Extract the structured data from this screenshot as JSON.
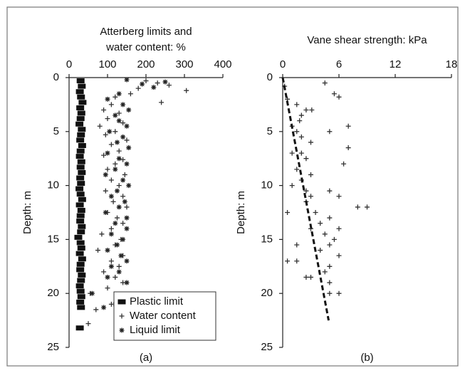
{
  "chart_data": [
    {
      "type": "scatter",
      "title_lines": [
        "Atterberg limits and",
        "water content: %"
      ],
      "y_label": "Depth: m",
      "caption": "(a)",
      "x_axis_position": "top",
      "y_inverted": true,
      "grid": false,
      "legend": "lower right",
      "xlim": [
        0,
        400
      ],
      "xticks": [
        0,
        100,
        200,
        300,
        400
      ],
      "ylim": [
        0,
        25
      ],
      "yticks": [
        0,
        5,
        10,
        15,
        20,
        25
      ],
      "series": [
        {
          "name": "Plastic limit",
          "marker": "square",
          "color": "#111",
          "x": [
            30,
            33,
            28,
            31,
            35,
            29,
            32,
            30,
            27,
            33,
            31,
            29,
            34,
            30,
            28,
            32,
            30,
            33,
            29,
            31,
            27,
            30,
            34,
            28,
            32,
            30,
            29,
            33,
            31,
            24,
            30,
            32,
            28,
            34,
            30,
            29,
            33,
            31,
            28,
            30,
            32,
            29,
            31,
            28
          ],
          "y": [
            0.3,
            0.8,
            1.3,
            1.8,
            2.3,
            2.8,
            3.3,
            3.8,
            4.3,
            4.8,
            5.3,
            5.8,
            6.3,
            6.8,
            7.3,
            7.8,
            8.3,
            8.8,
            9.3,
            9.8,
            10.3,
            10.8,
            11.3,
            11.8,
            12.3,
            12.8,
            13.3,
            13.8,
            14.3,
            14.8,
            15.3,
            15.8,
            16.3,
            16.8,
            17.3,
            17.8,
            18.3,
            18.8,
            19.3,
            19.8,
            20.3,
            20.8,
            21.3,
            23.2
          ]
        },
        {
          "name": "Water content",
          "marker": "plus",
          "color": "#333",
          "x": [
            200,
            230,
            260,
            180,
            305,
            160,
            120,
            240,
            110,
            90,
            130,
            100,
            140,
            80,
            120,
            95,
            150,
            110,
            130,
            90,
            140,
            120,
            100,
            145,
            110,
            130,
            95,
            140,
            115,
            150,
            100,
            125,
            140,
            110,
            85,
            135,
            120,
            75,
            140,
            110,
            130,
            90,
            120,
            140,
            100,
            55,
            130,
            110,
            70,
            50
          ],
          "y": [
            0.3,
            0.5,
            0.7,
            1.0,
            1.2,
            1.5,
            1.8,
            2.3,
            2.5,
            3.0,
            3.3,
            3.8,
            4.2,
            4.5,
            5.0,
            5.3,
            5.8,
            6.2,
            6.8,
            7.2,
            7.6,
            8.0,
            8.5,
            9.0,
            9.5,
            10.0,
            10.5,
            11.0,
            11.5,
            12.0,
            12.5,
            13.0,
            13.5,
            14.0,
            14.5,
            15.0,
            15.5,
            16.0,
            16.5,
            17.0,
            17.5,
            18.0,
            18.5,
            19.0,
            19.5,
            20.0,
            20.5,
            21.0,
            21.5,
            22.8
          ]
        },
        {
          "name": "Liquid limit",
          "marker": "asterisk",
          "color": "#222",
          "x": [
            150,
            250,
            190,
            220,
            130,
            100,
            140,
            155,
            120,
            130,
            150,
            105,
            140,
            125,
            155,
            100,
            130,
            150,
            120,
            95,
            140,
            155,
            125,
            110,
            145,
            130,
            95,
            150,
            120,
            150,
            110,
            140,
            125,
            100,
            135,
            150,
            110,
            130,
            100,
            150,
            60,
            140,
            120,
            90
          ],
          "y": [
            0.2,
            0.4,
            0.6,
            0.9,
            1.5,
            2.0,
            2.5,
            3.0,
            3.5,
            4.0,
            4.5,
            5.0,
            5.5,
            6.0,
            6.5,
            7.0,
            7.5,
            8.0,
            8.5,
            9.0,
            9.5,
            10.0,
            10.5,
            11.0,
            11.5,
            12.0,
            12.5,
            13.0,
            13.5,
            14.0,
            14.5,
            15.0,
            15.5,
            16.0,
            16.5,
            17.0,
            17.5,
            18.0,
            18.5,
            19.0,
            20.0,
            20.5,
            21.0,
            21.3
          ]
        }
      ]
    },
    {
      "type": "scatter",
      "title_lines": [
        "Vane shear strength: kPa"
      ],
      "y_label": "Depth: m",
      "caption": "(b)",
      "x_axis_position": "top",
      "y_inverted": true,
      "grid": false,
      "xlim": [
        0,
        18
      ],
      "xticks": [
        0,
        6,
        12,
        18
      ],
      "ylim": [
        0,
        25
      ],
      "yticks": [
        0,
        5,
        10,
        15,
        20,
        25
      ],
      "series": [
        {
          "marker": "plus",
          "color": "#333",
          "x": [
            4.5,
            0.2,
            5.5,
            6,
            0.5,
            1.5,
            2.5,
            3.1,
            2,
            1.8,
            7,
            1,
            1.5,
            5,
            2,
            3,
            7,
            1,
            2,
            2.5,
            6.5,
            1.5,
            3,
            2,
            1,
            2.5,
            5,
            3,
            6,
            2.5,
            8,
            9,
            0.5,
            3.5,
            5,
            4,
            3,
            6,
            4.5,
            5.5,
            1.5,
            5,
            4,
            6,
            0.5,
            1.5,
            5,
            4.5,
            2.5,
            3,
            5,
            6,
            5
          ],
          "y": [
            0.5,
            0.8,
            1.5,
            1.8,
            2,
            2.5,
            3,
            3,
            3.5,
            4,
            4.5,
            4.5,
            5,
            5,
            5.5,
            6,
            6.5,
            7,
            7,
            7.5,
            8,
            8.5,
            9,
            9.5,
            10,
            10.5,
            10.5,
            11,
            11,
            11.5,
            12,
            12,
            12.5,
            12.5,
            13,
            13.5,
            14,
            14,
            14.5,
            15,
            15.5,
            15.5,
            16,
            16.5,
            17,
            17,
            17.5,
            18,
            18.5,
            18.5,
            19,
            20,
            20
          ]
        }
      ],
      "trend_line": {
        "style": "dashed",
        "color": "#111",
        "x": [
          0,
          4.9
        ],
        "y": [
          0,
          22.5
        ]
      }
    }
  ]
}
